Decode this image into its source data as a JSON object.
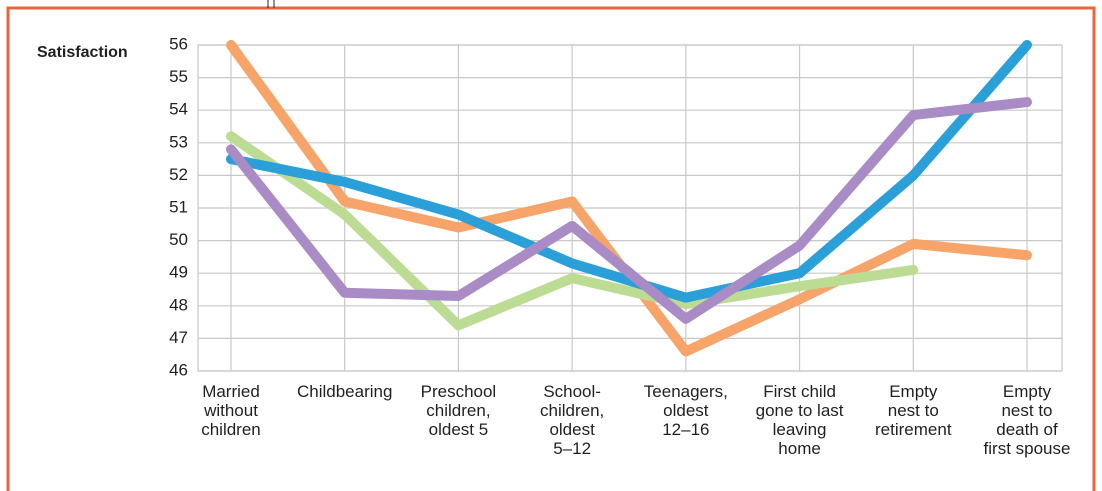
{
  "chart_data": {
    "type": "line",
    "y_label": "Satisfaction",
    "categories": [
      "Married\nwithout\nchildren",
      "Childbearing",
      "Preschool\nchildren,\noldest 5",
      "School-\nchildren,\noldest\n5–12",
      "Teenagers,\noldest\n12–16",
      "First child\ngone to last\nleaving\nhome",
      "Empty\nnest to\nretirement",
      "Empty\nnest to\ndeath of\nfirst spouse"
    ],
    "series": [
      {
        "color": "#f7a46b",
        "values": [
          56,
          51.2,
          50.4,
          51.2,
          46.6,
          48.2,
          49.9,
          49.55
        ]
      },
      {
        "color": "#bcdc94",
        "values": [
          53.2,
          50.8,
          47.4,
          48.85,
          48.05,
          48.6,
          49.1,
          null
        ]
      },
      {
        "color": "#2a9fd8",
        "values": [
          52.5,
          51.8,
          50.8,
          49.3,
          48.25,
          49.0,
          52.0,
          56.0
        ]
      },
      {
        "color": "#a98cc6",
        "values": [
          52.8,
          48.4,
          48.3,
          50.45,
          47.6,
          49.85,
          53.85,
          54.25
        ]
      }
    ],
    "ylim": [
      46,
      56
    ],
    "yticks": [
      46,
      47,
      48,
      49,
      50,
      51,
      52,
      53,
      54,
      55,
      56
    ],
    "grid": true
  }
}
